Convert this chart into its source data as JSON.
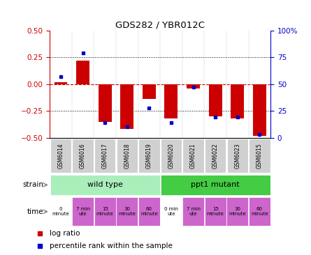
{
  "title": "GDS282 / YBR012C",
  "samples": [
    "GSM6014",
    "GSM6016",
    "GSM6017",
    "GSM6018",
    "GSM6019",
    "GSM6020",
    "GSM6021",
    "GSM6022",
    "GSM6023",
    "GSM6015"
  ],
  "log_ratios": [
    0.02,
    0.22,
    -0.35,
    -0.42,
    -0.14,
    -0.32,
    -0.04,
    -0.3,
    -0.32,
    -0.48
  ],
  "percentile_ranks": [
    57,
    79,
    14,
    10,
    28,
    14,
    47,
    19,
    19,
    3
  ],
  "ylim_left": [
    -0.5,
    0.5
  ],
  "ylim_right": [
    0,
    100
  ],
  "yticks_left": [
    -0.5,
    -0.25,
    0,
    0.25,
    0.5
  ],
  "yticks_right": [
    0,
    25,
    50,
    75,
    100
  ],
  "ytick_labels_right": [
    "0",
    "25",
    "50",
    "75",
    "100%"
  ],
  "bar_color": "#cc0000",
  "dot_color": "#0000cc",
  "hline_color": "#cc0000",
  "grid_color": "#000000",
  "sample_box_color": "#d0d0d0",
  "strain_wild": "wild type",
  "strain_mutant": "ppt1 mutant",
  "strain_wild_color": "#aaeebb",
  "strain_mutant_color": "#44cc44",
  "time_labels": [
    "0\nminute",
    "7 min\nute",
    "15\nminute",
    "30\nminute",
    "60\nminute",
    "0 min\nute",
    "7 min\nute",
    "15\nminute",
    "30\nminute",
    "60\nminute"
  ],
  "time_colors": [
    "#ffffff",
    "#cc66cc",
    "#cc66cc",
    "#cc66cc",
    "#cc66cc",
    "#ffffff",
    "#cc66cc",
    "#cc66cc",
    "#cc66cc",
    "#cc66cc"
  ],
  "legend_log": "log ratio",
  "legend_pct": "percentile rank within the sample",
  "bg_color": "#ffffff",
  "ylabel_left_color": "#cc0000",
  "ylabel_right_color": "#0000cc"
}
